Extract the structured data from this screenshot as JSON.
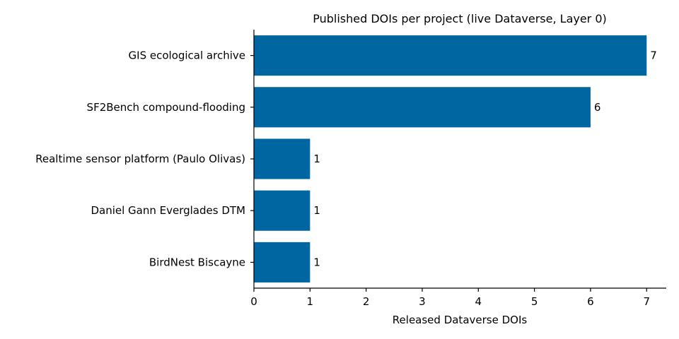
{
  "chart_data": {
    "type": "bar",
    "orientation": "horizontal",
    "title": "Published DOIs per project (live Dataverse, Layer 0)",
    "xlabel": "Released Dataverse DOIs",
    "ylabel": "",
    "categories": [
      "GIS ecological archive",
      "SF2Bench compound-flooding",
      "Realtime sensor platform (Paulo Olivas)",
      "Daniel Gann Everglades DTM",
      "BirdNest Biscayne"
    ],
    "values": [
      7,
      6,
      1,
      1,
      1
    ],
    "data_labels": [
      "7",
      "6",
      "1",
      "1",
      "1"
    ],
    "xlim": [
      0,
      7.35
    ],
    "xticks": [
      0,
      1,
      2,
      3,
      4,
      5,
      6,
      7
    ],
    "xtick_labels": [
      "0",
      "1",
      "2",
      "3",
      "4",
      "5",
      "6",
      "7"
    ],
    "bar_color": "#0066a1",
    "grid": false,
    "legend": "none"
  }
}
